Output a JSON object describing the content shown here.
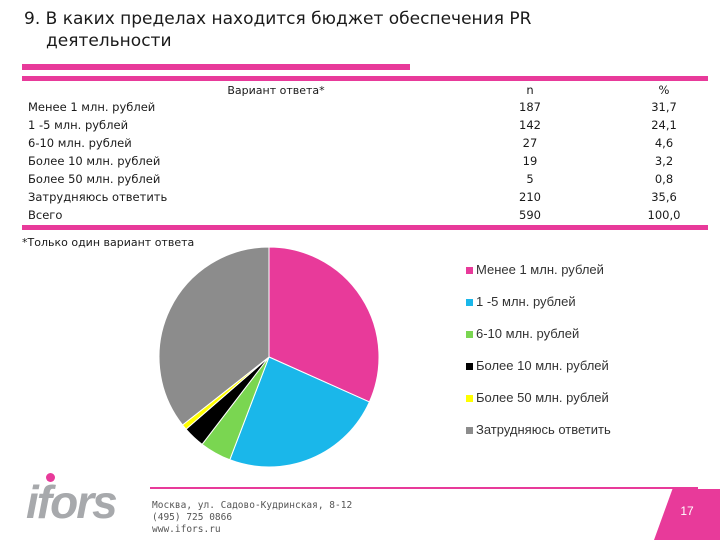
{
  "title": {
    "line1": "9. В каких пределах находится  бюджет обеспечения PR",
    "line2": "деятельности"
  },
  "table": {
    "header_label": "Вариант ответа*",
    "header_n": "n",
    "header_pct": "%",
    "rows": [
      {
        "label": "Менее 1  млн. рублей",
        "n": "187",
        "pct": "31,7"
      },
      {
        "label": "1 -5 млн. рублей",
        "n": "142",
        "pct": "24,1"
      },
      {
        "label": "6-10 млн. рублей",
        "n": "27",
        "pct": "4,6"
      },
      {
        "label": "Более 10 млн. рублей",
        "n": "19",
        "pct": "3,2"
      },
      {
        "label": "Более 50 млн. рублей",
        "n": "5",
        "pct": "0,8"
      },
      {
        "label": "Затрудняюсь ответить",
        "n": "210",
        "pct": "35,6"
      },
      {
        "label": "Всего",
        "n": "590",
        "pct": "100,0"
      }
    ]
  },
  "footnote": "*Только один вариант ответа",
  "chart_data": {
    "type": "pie",
    "categories": [
      "Менее 1  млн. рублей",
      "1 -5 млн. рублей",
      "6-10 млн. рублей",
      "Более 10 млн. рублей",
      "Более 50 млн. рублей",
      "Затрудняюсь ответить"
    ],
    "values": [
      31.7,
      24.1,
      4.6,
      3.2,
      0.8,
      35.6
    ],
    "colors": [
      "#e83a9a",
      "#1ab7ea",
      "#7ad651",
      "#000000",
      "#ffff00",
      "#8c8c8c"
    ],
    "legend": [
      "Менее 1  млн. рублей",
      "1 -5 млн. рублей",
      "6-10 млн. рублей",
      "Более 10 млн. рублей",
      "Более 50 млн. рублей",
      "Затрудняюсь ответить"
    ],
    "legend_position": "right"
  },
  "footer": {
    "logo": "ifors",
    "address_line1": "Москва, ул. Садово-Кудринская, 8-12",
    "address_line2": "(495) 725 0866",
    "address_line3": "www.ifors.ru",
    "page_number": "17"
  },
  "colors": {
    "accent": "#e83a9a",
    "logo_gray": "#a7a9ac"
  }
}
